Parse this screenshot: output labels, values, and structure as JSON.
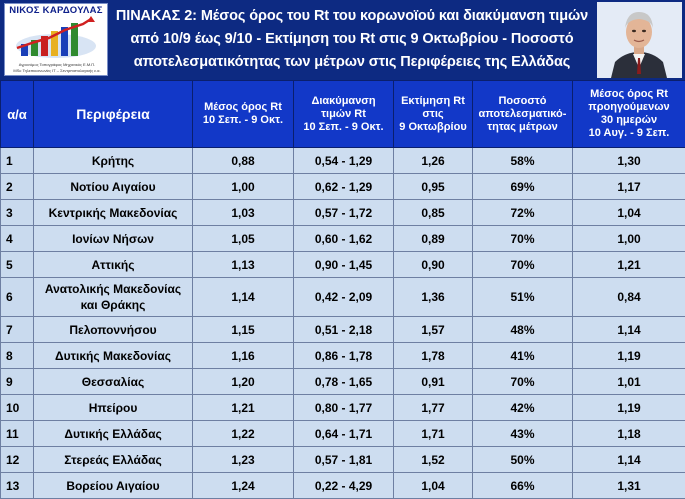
{
  "logo": {
    "name": "ΝΙΚΟΣ ΚΑΡΔΟΥΛΑΣ",
    "sub1": "Αγρονόμος Τοπογράφος Μηχανικός Ε.Μ.Π.",
    "sub2": "MSc Τηλεπικοινωνίες ΙΤ – Σεντρπιστολογικής ε.α."
  },
  "title": {
    "line1": "ΠΙΝΑΚΑΣ 2: Μέσος όρος του Rt του κορωνοϊού και διακύμανση τιμών",
    "line2": "από 10/9 έως 9/10 - Εκτίμηση του Rt στις 9 Οκτωβρίου - Ποσοστό",
    "line3": "αποτελεσματικότητας των μέτρων στις Περιφέρειες της Ελλάδας"
  },
  "table": {
    "headers": {
      "aa": "α/α",
      "region": "Περιφέρεια",
      "mean_l1": "Μέσος όρος Rt",
      "mean_l2": "10 Σεπ. - 9 Οκτ.",
      "range_l1": "Διακύμανση",
      "range_l2": "τιμών Rt",
      "range_l3": "10 Σεπ. - 9 Οκτ.",
      "est_l1": "Εκτίμηση Rt",
      "est_l2": "στις",
      "est_l3": "9 Οκτωβρίου",
      "pct_l1": "Ποσοστό",
      "pct_l2": "αποτελεσματικό-",
      "pct_l3": "τητας μέτρων",
      "prev_l1": "Μέσος όρος Rt",
      "prev_l2": "προηγούμενων",
      "prev_l3": "30 ημερών",
      "prev_l4": "10 Αυγ. - 9 Σεπ."
    },
    "rows": [
      {
        "aa": "1",
        "region": "Κρήτης",
        "mean": "0,88",
        "range": "0,54 - 1,29",
        "est": "1,26",
        "pct": "58%",
        "prev": "1,30"
      },
      {
        "aa": "2",
        "region": "Νοτίου Αιγαίου",
        "mean": "1,00",
        "range": "0,62 - 1,29",
        "est": "0,95",
        "pct": "69%",
        "prev": "1,17"
      },
      {
        "aa": "3",
        "region": "Κεντρικής Μακεδονίας",
        "mean": "1,03",
        "range": "0,57 - 1,72",
        "est": "0,85",
        "pct": "72%",
        "prev": "1,04"
      },
      {
        "aa": "4",
        "region": "Ιονίων Νήσων",
        "mean": "1,05",
        "range": "0,60 - 1,62",
        "est": "0,89",
        "pct": "70%",
        "prev": "1,00"
      },
      {
        "aa": "5",
        "region": "Αττικής",
        "mean": "1,13",
        "range": "0,90 - 1,45",
        "est": "0,90",
        "pct": "70%",
        "prev": "1,21"
      },
      {
        "aa": "6",
        "region": "Ανατολικής Μακεδονίας",
        "region2": "και Θράκης",
        "mean": "1,14",
        "range": "0,42 - 2,09",
        "est": "1,36",
        "pct": "51%",
        "prev": "0,84"
      },
      {
        "aa": "7",
        "region": "Πελοποννήσου",
        "mean": "1,15",
        "range": "0,51 - 2,18",
        "est": "1,57",
        "pct": "48%",
        "prev": "1,14"
      },
      {
        "aa": "8",
        "region": "Δυτικής Μακεδονίας",
        "mean": "1,16",
        "range": "0,86 - 1,78",
        "est": "1,78",
        "pct": "41%",
        "prev": "1,19"
      },
      {
        "aa": "9",
        "region": "Θεσσαλίας",
        "mean": "1,20",
        "range": "0,78 - 1,65",
        "est": "0,91",
        "pct": "70%",
        "prev": "1,01"
      },
      {
        "aa": "10",
        "region": "Ηπείρου",
        "mean": "1,21",
        "range": "0,80 - 1,77",
        "est": "1,77",
        "pct": "42%",
        "prev": "1,19"
      },
      {
        "aa": "11",
        "region": "Δυτικής Ελλάδας",
        "mean": "1,22",
        "range": "0,64 - 1,71",
        "est": "1,71",
        "pct": "43%",
        "prev": "1,18"
      },
      {
        "aa": "12",
        "region": "Στερεάς Ελλάδας",
        "mean": "1,23",
        "range": "0,57 - 1,81",
        "est": "1,52",
        "pct": "50%",
        "prev": "1,14"
      },
      {
        "aa": "13",
        "region": "Βορείου Αιγαίου",
        "mean": "1,24",
        "range": "0,22 - 4,29",
        "est": "1,04",
        "pct": "66%",
        "prev": "1,31"
      }
    ]
  }
}
